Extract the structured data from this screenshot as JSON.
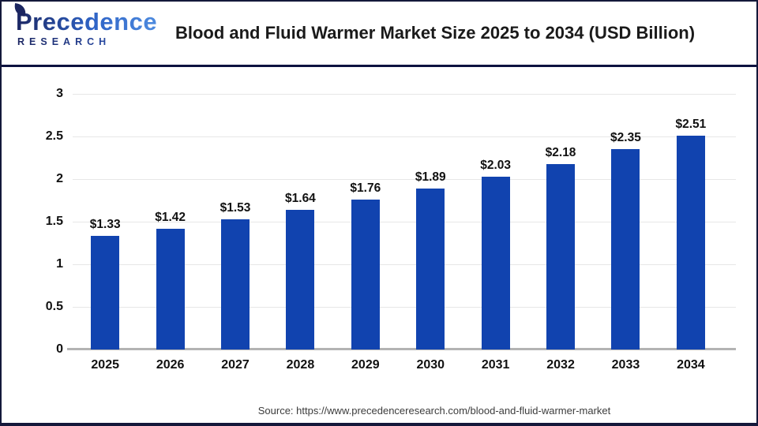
{
  "logo": {
    "line1": "Precedence",
    "line2": "RESEARCH"
  },
  "header": {
    "title": "Blood and Fluid Warmer Market Size 2025 to 2034 (USD Billion)"
  },
  "source": {
    "text": "Source: https://www.precedenceresearch.com/blood-and-fluid-warmer-market"
  },
  "colors": {
    "bar": "#1143af",
    "divider": "#0d1240",
    "gridline": "#e7e7e7",
    "axis_line": "#b3b3b3",
    "title_text": "#1a1a1a",
    "logo_navy": "#1b2560",
    "logo_blue": "#4e8bdf"
  },
  "chart_data": {
    "type": "bar",
    "title": "Blood and Fluid Warmer Market Size 2025 to 2034 (USD Billion)",
    "categories": [
      "2025",
      "2026",
      "2027",
      "2028",
      "2029",
      "2030",
      "2031",
      "2032",
      "2033",
      "2034"
    ],
    "values": [
      1.33,
      1.42,
      1.53,
      1.64,
      1.76,
      1.89,
      2.03,
      2.18,
      2.35,
      2.51
    ],
    "value_labels": [
      "$1.33",
      "$1.42",
      "$1.53",
      "$1.64",
      "$1.76",
      "$1.89",
      "$2.03",
      "$2.18",
      "$2.35",
      "$2.51"
    ],
    "yticks": [
      0,
      0.5,
      1,
      1.5,
      2,
      2.5,
      3
    ],
    "ylim": [
      0,
      3
    ],
    "xlabel": "",
    "ylabel": "",
    "bar_color": "#1143af",
    "grid": true,
    "legend_position": "none"
  }
}
